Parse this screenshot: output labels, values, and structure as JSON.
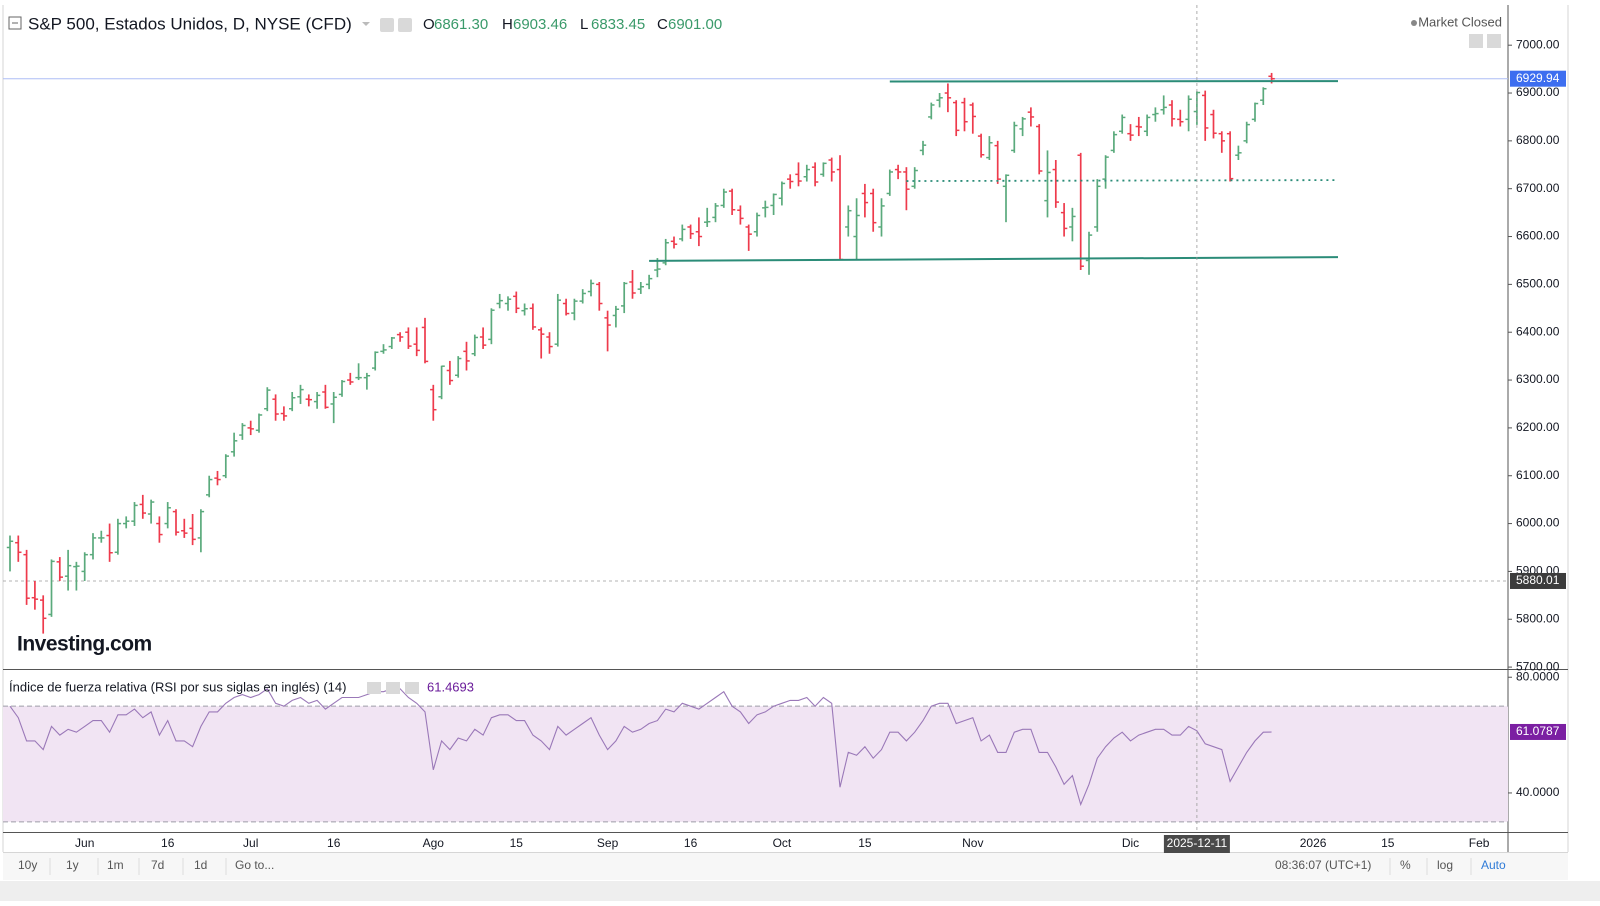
{
  "chart_data": {
    "type": "ohlc",
    "title": "S&P 500, Estados Unidos, D, NYSE (CFD)",
    "status": "Market Closed",
    "watermark": "Investing.com",
    "up_color": "#5aaa7c",
    "down_color": "#ee3a4c",
    "categories": [
      null,
      null,
      null,
      null,
      null,
      null,
      null,
      null,
      null,
      "Jun",
      null,
      null,
      null,
      null,
      null,
      null,
      null,
      null,
      null,
      "16",
      null,
      null,
      null,
      null,
      null,
      null,
      null,
      null,
      null,
      "Jul",
      null,
      null,
      null,
      null,
      null,
      null,
      null,
      null,
      null,
      "16",
      null,
      null,
      null,
      null,
      null,
      null,
      null,
      null,
      null,
      null,
      null,
      "Ago",
      null,
      null,
      null,
      null,
      null,
      null,
      null,
      null,
      null,
      "15",
      null,
      null,
      null,
      null,
      null,
      null,
      null,
      null,
      null,
      null,
      "Sep",
      null,
      null,
      null,
      null,
      null,
      null,
      null,
      null,
      null,
      "16",
      null,
      null,
      null,
      null,
      null,
      null,
      null,
      null,
      null,
      null,
      "Oct",
      null,
      null,
      null,
      null,
      null,
      null,
      null,
      null,
      null,
      "15",
      null,
      null,
      null,
      null,
      null,
      null,
      null,
      null,
      null,
      null,
      null,
      null,
      "Nov",
      null,
      null,
      null,
      null,
      null,
      null,
      null,
      null,
      null,
      null,
      null,
      null,
      null,
      null,
      null,
      null,
      null,
      null,
      "Dic",
      null,
      null,
      null,
      null,
      null,
      null,
      null,
      "2025-12-11",
      null,
      null,
      null,
      null,
      null,
      null,
      null,
      null,
      null,
      null,
      null,
      null,
      null,
      "2026",
      null,
      null,
      null,
      null,
      null,
      null,
      null,
      null,
      "15",
      null,
      null,
      null,
      null,
      null,
      null,
      null,
      null,
      null,
      null,
      "Feb",
      null,
      null,
      null
    ],
    "open": [
      5950,
      5960,
      5935,
      5845,
      5840,
      5810,
      5920,
      5890,
      5910,
      5900,
      5935,
      5970,
      5975,
      5940,
      6000,
      6005,
      6040,
      6020,
      6000,
      6000,
      6025,
      5985,
      5990,
      5970,
      6060,
      6095,
      6100,
      6150,
      6185,
      6200,
      6195,
      6240,
      6260,
      6230,
      6240,
      6265,
      6260,
      6255,
      6275,
      6250,
      6270,
      6300,
      6305,
      6305,
      6325,
      6360,
      6370,
      6395,
      6400,
      6375,
      6410,
      6280,
      6265,
      6320,
      6310,
      6360,
      6355,
      6390,
      6385,
      6460,
      6460,
      6475,
      6445,
      6450,
      6405,
      6390,
      6375,
      6460,
      6440,
      6465,
      6485,
      6500,
      6430,
      6435,
      6455,
      6505,
      6490,
      6500,
      6530,
      6545,
      6590,
      6595,
      6620,
      6610,
      6630,
      6640,
      6665,
      6695,
      6655,
      6620,
      6610,
      6660,
      6665,
      6680,
      6720,
      6730,
      6725,
      6745,
      6730,
      6760,
      6740,
      6620,
      6600,
      6690,
      6690,
      6620,
      6690,
      6740,
      6735,
      6705,
      6780,
      6850,
      6885,
      6900,
      6880,
      6880,
      6875,
      6810,
      6765,
      6790,
      6705,
      6780,
      6825,
      6860,
      6830,
      6675,
      6740,
      6650,
      6620,
      6770,
      6550,
      6620,
      6720,
      6780,
      6820,
      6815,
      6830,
      6820,
      6855,
      6865,
      6875,
      6845,
      6845,
      6861.3,
      6895,
      6855,
      6815,
      6815,
      6770,
      6800,
      6845,
      6885,
      6935,
      null,
      null,
      null,
      null,
      null,
      null,
      null,
      null,
      null,
      null,
      null,
      null,
      null,
      null,
      null,
      null,
      null,
      null,
      null,
      null,
      null,
      null,
      null,
      null,
      null,
      null,
      null,
      null
    ],
    "high": [
      5975,
      5975,
      5945,
      5880,
      5850,
      5925,
      5930,
      5945,
      5920,
      5940,
      5980,
      5985,
      6000,
      6010,
      6015,
      6045,
      6060,
      6050,
      6015,
      6045,
      6030,
      6010,
      6020,
      6030,
      6100,
      6110,
      6145,
      6190,
      6210,
      6215,
      6230,
      6285,
      6270,
      6245,
      6275,
      6290,
      6270,
      6275,
      6290,
      6275,
      6300,
      6315,
      6335,
      6315,
      6360,
      6375,
      6390,
      6400,
      6410,
      6410,
      6430,
      6290,
      6330,
      6340,
      6350,
      6380,
      6395,
      6410,
      6450,
      6480,
      6475,
      6485,
      6460,
      6460,
      6410,
      6400,
      6480,
      6470,
      6470,
      6490,
      6510,
      6505,
      6445,
      6455,
      6505,
      6530,
      6505,
      6520,
      6555,
      6595,
      6600,
      6625,
      6625,
      6640,
      6660,
      6670,
      6700,
      6700,
      6665,
      6625,
      6650,
      6675,
      6690,
      6715,
      6730,
      6755,
      6750,
      6755,
      6755,
      6765,
      6770,
      6665,
      6680,
      6710,
      6700,
      6680,
      6740,
      6750,
      6745,
      6745,
      6800,
      6880,
      6900,
      6920,
      6885,
      6890,
      6880,
      6815,
      6810,
      6800,
      6730,
      6840,
      6850,
      6870,
      6835,
      6780,
      6760,
      6670,
      6660,
      6775,
      6610,
      6720,
      6770,
      6820,
      6855,
      6835,
      6850,
      6855,
      6870,
      6895,
      6885,
      6865,
      6895,
      6903.46,
      6905,
      6865,
      6820,
      6820,
      6790,
      6840,
      6880,
      6912,
      6942,
      null,
      null,
      null,
      null,
      null,
      null,
      null,
      null,
      null,
      null,
      null,
      null,
      null,
      null,
      null,
      null,
      null,
      null,
      null,
      null,
      null,
      null,
      null,
      null,
      null,
      null,
      null,
      null
    ],
    "low": [
      5900,
      5920,
      5830,
      5820,
      5770,
      5805,
      5880,
      5860,
      5860,
      5880,
      5925,
      5960,
      5920,
      5935,
      5990,
      5995,
      6010,
      6000,
      5960,
      5990,
      5975,
      5970,
      5955,
      5940,
      6055,
      6080,
      6095,
      6140,
      6175,
      6185,
      6190,
      6235,
      6215,
      6215,
      6235,
      6250,
      6245,
      6240,
      6240,
      6210,
      6265,
      6290,
      6300,
      6280,
      6320,
      6355,
      6365,
      6380,
      6365,
      6350,
      6335,
      6215,
      6260,
      6290,
      6305,
      6320,
      6350,
      6365,
      6375,
      6450,
      6445,
      6440,
      6435,
      6405,
      6345,
      6355,
      6370,
      6435,
      6425,
      6460,
      6475,
      6445,
      6360,
      6410,
      6440,
      6470,
      6480,
      6490,
      6515,
      6540,
      6575,
      6590,
      6595,
      6580,
      6620,
      6630,
      6660,
      6645,
      6625,
      6570,
      6600,
      6640,
      6645,
      6665,
      6700,
      6705,
      6715,
      6705,
      6725,
      6715,
      6550,
      6600,
      6550,
      6640,
      6610,
      6600,
      6685,
      6720,
      6655,
      6700,
      6770,
      6845,
      6870,
      6860,
      6810,
      6820,
      6815,
      6765,
      6760,
      6710,
      6630,
      6775,
      6810,
      6830,
      6730,
      6640,
      6660,
      6600,
      6590,
      6530,
      6520,
      6610,
      6700,
      6775,
      6815,
      6800,
      6810,
      6810,
      6840,
      6855,
      6830,
      6830,
      6820,
      6833.45,
      6800,
      6805,
      6775,
      6715,
      6760,
      6795,
      6840,
      6875,
      6920,
      null,
      null,
      null,
      null,
      null,
      null,
      null,
      null,
      null,
      null,
      null,
      null,
      null,
      null,
      null,
      null,
      null,
      null,
      null,
      null,
      null,
      null,
      null,
      null,
      null,
      null,
      null,
      null
    ],
    "close": [
      5963,
      5940,
      5844,
      5842,
      5802,
      5921,
      5888,
      5912,
      5911,
      5935,
      5970,
      5970,
      5939,
      6000,
      6005,
      6038,
      6022,
      6045,
      5977,
      6033,
      5982,
      5980,
      5967,
      6025,
      6092,
      6092,
      6141,
      6173,
      6205,
      6198,
      6227,
      6279,
      6229,
      6225,
      6263,
      6280,
      6259,
      6268,
      6243,
      6264,
      6297,
      6296,
      6305,
      6309,
      6358,
      6363,
      6388,
      6390,
      6371,
      6362,
      6339,
      6238,
      6329,
      6299,
      6345,
      6340,
      6389,
      6373,
      6446,
      6466,
      6469,
      6450,
      6449,
      6411,
      6396,
      6370,
      6467,
      6439,
      6465,
      6481,
      6502,
      6460,
      6415,
      6448,
      6502,
      6482,
      6495,
      6512,
      6532,
      6587,
      6584,
      6615,
      6606,
      6600,
      6631,
      6664,
      6693,
      6656,
      6638,
      6605,
      6644,
      6661,
      6688,
      6711,
      6715,
      6716,
      6740,
      6714,
      6753,
      6735,
      6552,
      6654,
      6644,
      6671,
      6629,
      6664,
      6735,
      6735,
      6699,
      6738,
      6791,
      6875,
      6890,
      6890,
      6822,
      6840,
      6851,
      6771,
      6796,
      6720,
      6728,
      6832,
      6846,
      6850,
      6737,
      6734,
      6672,
      6617,
      6642,
      6538,
      6603,
      6705,
      6766,
      6813,
      6849,
      6812,
      6829,
      6849,
      6857,
      6870,
      6846,
      6840,
      6887,
      6901,
      6827,
      6816,
      6800,
      6721,
      6775,
      6834,
      6878,
      6909,
      6929.94,
      null,
      null,
      null,
      null,
      null,
      null,
      null,
      null,
      null,
      null,
      null,
      null,
      null,
      null,
      null,
      null,
      null,
      null,
      null,
      null,
      null,
      null,
      null,
      null,
      null,
      null,
      null,
      null
    ],
    "ylim": [
      5696,
      7084
    ],
    "yticks": [
      {
        "value": 5700,
        "label": "5700.00"
      },
      {
        "value": 5800,
        "label": "5800.00"
      },
      {
        "value": 5900,
        "label": "5900.00"
      },
      {
        "value": 6000,
        "label": "6000.00"
      },
      {
        "value": 6100,
        "label": "6100.00"
      },
      {
        "value": 6200,
        "label": "6200.00"
      },
      {
        "value": 6300,
        "label": "6300.00"
      },
      {
        "value": 6400,
        "label": "6400.00"
      },
      {
        "value": 6500,
        "label": "6500.00"
      },
      {
        "value": 6600,
        "label": "6600.00"
      },
      {
        "value": 6700,
        "label": "6700.00"
      },
      {
        "value": 6800,
        "label": "6800.00"
      },
      {
        "value": 6900,
        "label": "6900.00"
      },
      {
        "value": 7000,
        "label": "7000.00"
      }
    ],
    "last_price_color": "#3d6ef0",
    "crosshair": {
      "category": 143,
      "price": 5880.01,
      "ohlc_keys": [
        "O",
        "H",
        "L",
        "C"
      ],
      "ohlc_labels": [
        "6861.30",
        "6903.46",
        "6833.45",
        "6901.00"
      ]
    },
    "trendline_color": "#2b8c78",
    "trendlines": [
      {
        "from": [
          106,
          6924
        ],
        "to": [
          160,
          6925
        ],
        "style": "solid"
      },
      {
        "from": [
          77,
          6549
        ],
        "to": [
          160,
          6557
        ],
        "style": "solid"
      },
      {
        "from": [
          108,
          6716
        ],
        "to": [
          160,
          6718
        ],
        "style": "dotted"
      }
    ],
    "indicator": {
      "type": "line",
      "title": "Índice de fuerza relativa (RSI por sus siglas en inglés) (14)",
      "color": "#9a78b8",
      "badge_color": "#7b1fa2",
      "band": [
        30,
        70
      ],
      "band_color": "#f1e4f3",
      "ylim": [
        26.5,
        82.5
      ],
      "yticks": [
        {
          "value": 80,
          "label": "80.0000"
        },
        {
          "value": 40,
          "label": "40.0000"
        }
      ],
      "values": [
        70,
        66,
        58,
        58,
        55,
        63,
        60,
        62,
        61,
        63,
        65,
        65,
        61,
        67,
        67,
        69,
        66,
        68,
        60,
        65,
        58,
        58,
        56,
        63,
        68,
        68,
        71,
        73,
        74,
        73,
        74,
        76,
        71,
        70,
        72,
        73,
        71,
        72,
        69,
        71,
        73,
        73,
        73,
        74,
        75,
        75,
        76,
        76,
        73,
        71,
        68,
        48,
        58,
        55,
        59,
        58,
        62,
        60,
        66,
        67,
        67,
        65,
        65,
        60,
        58,
        55,
        63,
        60,
        62,
        64,
        66,
        60,
        55,
        58,
        63,
        61,
        62,
        64,
        65,
        69,
        68,
        71,
        70,
        69,
        71,
        73,
        75,
        70,
        68,
        64,
        67,
        68,
        70,
        71,
        72,
        72,
        73,
        70,
        73,
        71,
        42,
        54,
        53,
        56,
        52,
        55,
        61,
        61,
        58,
        61,
        65,
        70,
        71,
        71,
        64,
        65,
        66,
        58,
        60,
        54,
        54,
        61,
        62,
        62,
        54,
        54,
        49,
        43,
        46,
        36,
        43,
        52,
        56,
        59,
        61,
        58,
        60,
        61,
        62,
        62,
        60,
        60,
        63,
        61.4693,
        57,
        56,
        55,
        44,
        49,
        54,
        58,
        61,
        61.0787,
        null,
        null,
        null,
        null,
        null,
        null,
        null,
        null,
        null,
        null,
        null,
        null,
        null,
        null,
        null,
        null,
        null,
        null,
        null,
        null,
        null,
        null,
        null,
        null,
        null,
        null,
        null,
        null
      ]
    }
  },
  "toolbar": {
    "ranges": [
      "10y",
      "1y",
      "1m",
      "7d",
      "1d"
    ],
    "goto": "Go to...",
    "time": "08:36:07 (UTC+1)",
    "options": [
      "%",
      "log",
      "Auto"
    ]
  }
}
